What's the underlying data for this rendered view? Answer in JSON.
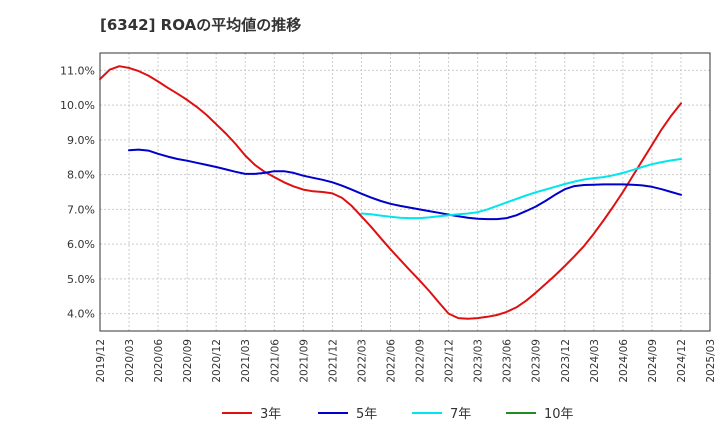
{
  "chart_data": {
    "type": "line",
    "title": "[6342]  ROAの平均値の推移",
    "xlabel": "",
    "ylabel": "",
    "ylim": [
      3.5,
      11.5
    ],
    "y_ticks": [
      4.0,
      5.0,
      6.0,
      7.0,
      8.0,
      9.0,
      10.0,
      11.0
    ],
    "y_tick_labels": [
      "4.0%",
      "5.0%",
      "6.0%",
      "7.0%",
      "8.0%",
      "9.0%",
      "10.0%",
      "11.0%"
    ],
    "x_tick_labels": [
      "2019/12",
      "2020/03",
      "2020/06",
      "2020/09",
      "2020/12",
      "2021/03",
      "2021/06",
      "2021/09",
      "2021/12",
      "2022/03",
      "2022/06",
      "2022/09",
      "2022/12",
      "2023/03",
      "2023/06",
      "2023/09",
      "2023/12",
      "2024/03",
      "2024/06",
      "2024/09",
      "2024/12",
      "2025/03"
    ],
    "grid": true,
    "legend_position": "bottom",
    "series": [
      {
        "name": "3年",
        "color": "#dd1111",
        "points": [
          [
            "2019/12",
            10.75
          ],
          [
            "2020/01",
            11.02
          ],
          [
            "2020/02",
            11.12
          ],
          [
            "2020/03",
            11.07
          ],
          [
            "2020/04",
            10.98
          ],
          [
            "2020/05",
            10.85
          ],
          [
            "2020/06",
            10.68
          ],
          [
            "2020/07",
            10.5
          ],
          [
            "2020/08",
            10.33
          ],
          [
            "2020/09",
            10.15
          ],
          [
            "2020/10",
            9.95
          ],
          [
            "2020/11",
            9.72
          ],
          [
            "2020/12",
            9.45
          ],
          [
            "2021/01",
            9.18
          ],
          [
            "2021/02",
            8.88
          ],
          [
            "2021/03",
            8.55
          ],
          [
            "2021/04",
            8.28
          ],
          [
            "2021/05",
            8.08
          ],
          [
            "2021/06",
            7.93
          ],
          [
            "2021/07",
            7.78
          ],
          [
            "2021/08",
            7.66
          ],
          [
            "2021/09",
            7.57
          ],
          [
            "2021/10",
            7.52
          ],
          [
            "2021/11",
            7.5
          ],
          [
            "2021/12",
            7.46
          ],
          [
            "2022/01",
            7.33
          ],
          [
            "2022/02",
            7.1
          ],
          [
            "2022/03",
            6.8
          ],
          [
            "2022/04",
            6.5
          ],
          [
            "2022/05",
            6.17
          ],
          [
            "2022/06",
            5.85
          ],
          [
            "2022/07",
            5.55
          ],
          [
            "2022/08",
            5.25
          ],
          [
            "2022/09",
            4.96
          ],
          [
            "2022/10",
            4.65
          ],
          [
            "2022/11",
            4.32
          ],
          [
            "2022/12",
            4.0
          ],
          [
            "2023/01",
            3.87
          ],
          [
            "2023/02",
            3.85
          ],
          [
            "2023/03",
            3.87
          ],
          [
            "2023/04",
            3.91
          ],
          [
            "2023/05",
            3.96
          ],
          [
            "2023/06",
            4.05
          ],
          [
            "2023/07",
            4.18
          ],
          [
            "2023/08",
            4.37
          ],
          [
            "2023/09",
            4.6
          ],
          [
            "2023/10",
            4.85
          ],
          [
            "2023/11",
            5.1
          ],
          [
            "2023/12",
            5.37
          ],
          [
            "2024/01",
            5.65
          ],
          [
            "2024/02",
            5.95
          ],
          [
            "2024/03",
            6.3
          ],
          [
            "2024/04",
            6.68
          ],
          [
            "2024/05",
            7.08
          ],
          [
            "2024/06",
            7.5
          ],
          [
            "2024/07",
            7.95
          ],
          [
            "2024/08",
            8.4
          ],
          [
            "2024/09",
            8.85
          ],
          [
            "2024/10",
            9.3
          ],
          [
            "2024/11",
            9.7
          ],
          [
            "2024/12",
            10.05
          ]
        ]
      },
      {
        "name": "5年",
        "color": "#0000cc",
        "points": [
          [
            "2020/03",
            8.7
          ],
          [
            "2020/04",
            8.72
          ],
          [
            "2020/05",
            8.69
          ],
          [
            "2020/06",
            8.6
          ],
          [
            "2020/07",
            8.52
          ],
          [
            "2020/08",
            8.45
          ],
          [
            "2020/09",
            8.4
          ],
          [
            "2020/10",
            8.34
          ],
          [
            "2020/11",
            8.28
          ],
          [
            "2020/12",
            8.22
          ],
          [
            "2021/01",
            8.15
          ],
          [
            "2021/02",
            8.08
          ],
          [
            "2021/03",
            8.02
          ],
          [
            "2021/04",
            8.02
          ],
          [
            "2021/05",
            8.05
          ],
          [
            "2021/06",
            8.1
          ],
          [
            "2021/07",
            8.1
          ],
          [
            "2021/08",
            8.05
          ],
          [
            "2021/09",
            7.97
          ],
          [
            "2021/10",
            7.91
          ],
          [
            "2021/11",
            7.85
          ],
          [
            "2021/12",
            7.78
          ],
          [
            "2022/01",
            7.68
          ],
          [
            "2022/02",
            7.57
          ],
          [
            "2022/03",
            7.45
          ],
          [
            "2022/04",
            7.34
          ],
          [
            "2022/05",
            7.24
          ],
          [
            "2022/06",
            7.16
          ],
          [
            "2022/07",
            7.1
          ],
          [
            "2022/08",
            7.05
          ],
          [
            "2022/09",
            7.0
          ],
          [
            "2022/10",
            6.95
          ],
          [
            "2022/11",
            6.9
          ],
          [
            "2022/12",
            6.85
          ],
          [
            "2023/01",
            6.8
          ],
          [
            "2023/02",
            6.76
          ],
          [
            "2023/03",
            6.73
          ],
          [
            "2023/04",
            6.72
          ],
          [
            "2023/05",
            6.72
          ],
          [
            "2023/06",
            6.75
          ],
          [
            "2023/07",
            6.83
          ],
          [
            "2023/08",
            6.95
          ],
          [
            "2023/09",
            7.08
          ],
          [
            "2023/10",
            7.24
          ],
          [
            "2023/11",
            7.42
          ],
          [
            "2023/12",
            7.58
          ],
          [
            "2024/01",
            7.67
          ],
          [
            "2024/02",
            7.7
          ],
          [
            "2024/03",
            7.71
          ],
          [
            "2024/04",
            7.72
          ],
          [
            "2024/05",
            7.72
          ],
          [
            "2024/06",
            7.72
          ],
          [
            "2024/07",
            7.71
          ],
          [
            "2024/08",
            7.69
          ],
          [
            "2024/09",
            7.65
          ],
          [
            "2024/10",
            7.58
          ],
          [
            "2024/11",
            7.5
          ],
          [
            "2024/12",
            7.42
          ]
        ]
      },
      {
        "name": "7年",
        "color": "#00e5ee",
        "points": [
          [
            "2022/03",
            6.88
          ],
          [
            "2022/04",
            6.86
          ],
          [
            "2022/05",
            6.82
          ],
          [
            "2022/06",
            6.79
          ],
          [
            "2022/07",
            6.76
          ],
          [
            "2022/08",
            6.75
          ],
          [
            "2022/09",
            6.75
          ],
          [
            "2022/10",
            6.77
          ],
          [
            "2022/11",
            6.8
          ],
          [
            "2022/12",
            6.83
          ],
          [
            "2023/01",
            6.86
          ],
          [
            "2023/02",
            6.88
          ],
          [
            "2023/03",
            6.92
          ],
          [
            "2023/04",
            7.0
          ],
          [
            "2023/05",
            7.1
          ],
          [
            "2023/06",
            7.2
          ],
          [
            "2023/07",
            7.3
          ],
          [
            "2023/08",
            7.4
          ],
          [
            "2023/09",
            7.49
          ],
          [
            "2023/10",
            7.57
          ],
          [
            "2023/11",
            7.65
          ],
          [
            "2023/12",
            7.73
          ],
          [
            "2024/01",
            7.8
          ],
          [
            "2024/02",
            7.86
          ],
          [
            "2024/03",
            7.9
          ],
          [
            "2024/04",
            7.93
          ],
          [
            "2024/05",
            7.98
          ],
          [
            "2024/06",
            8.05
          ],
          [
            "2024/07",
            8.13
          ],
          [
            "2024/08",
            8.22
          ],
          [
            "2024/09",
            8.3
          ],
          [
            "2024/10",
            8.36
          ],
          [
            "2024/11",
            8.41
          ],
          [
            "2024/12",
            8.45
          ]
        ]
      },
      {
        "name": "10年",
        "color": "#228b22",
        "points": []
      }
    ]
  }
}
